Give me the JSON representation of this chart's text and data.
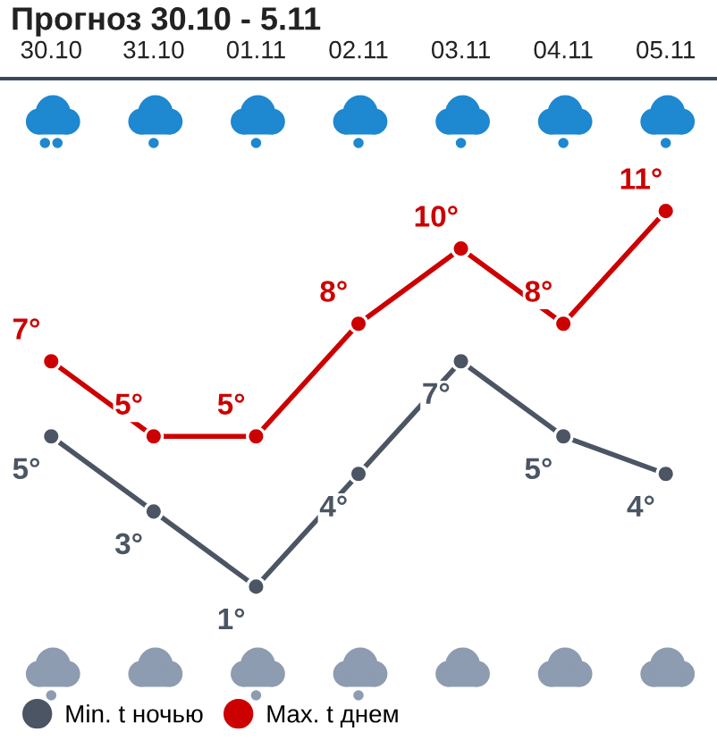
{
  "chart_data": {
    "type": "line",
    "title": "Прогноз 30.10 - 5.11",
    "categories": [
      "30.10",
      "31.10",
      "01.11",
      "02.11",
      "03.11",
      "04.11",
      "05.11"
    ],
    "series": [
      {
        "name": "Min. t ночью",
        "color": "#4b5563",
        "values": [
          5,
          3,
          1,
          4,
          7,
          5,
          4
        ],
        "value_labels": [
          "5°",
          "3°",
          "1°",
          "4°",
          "7°",
          "5°",
          "4°"
        ]
      },
      {
        "name": "Max. t днем",
        "color": "#cc0000",
        "values": [
          7,
          5,
          5,
          8,
          10,
          8,
          11
        ],
        "value_labels": [
          "7°",
          "5°",
          "5°",
          "8°",
          "10°",
          "8°",
          "11°"
        ]
      }
    ],
    "marker": "circle",
    "line_style": "solid",
    "legend": "bottom",
    "tick_labels": "x"
  }
}
